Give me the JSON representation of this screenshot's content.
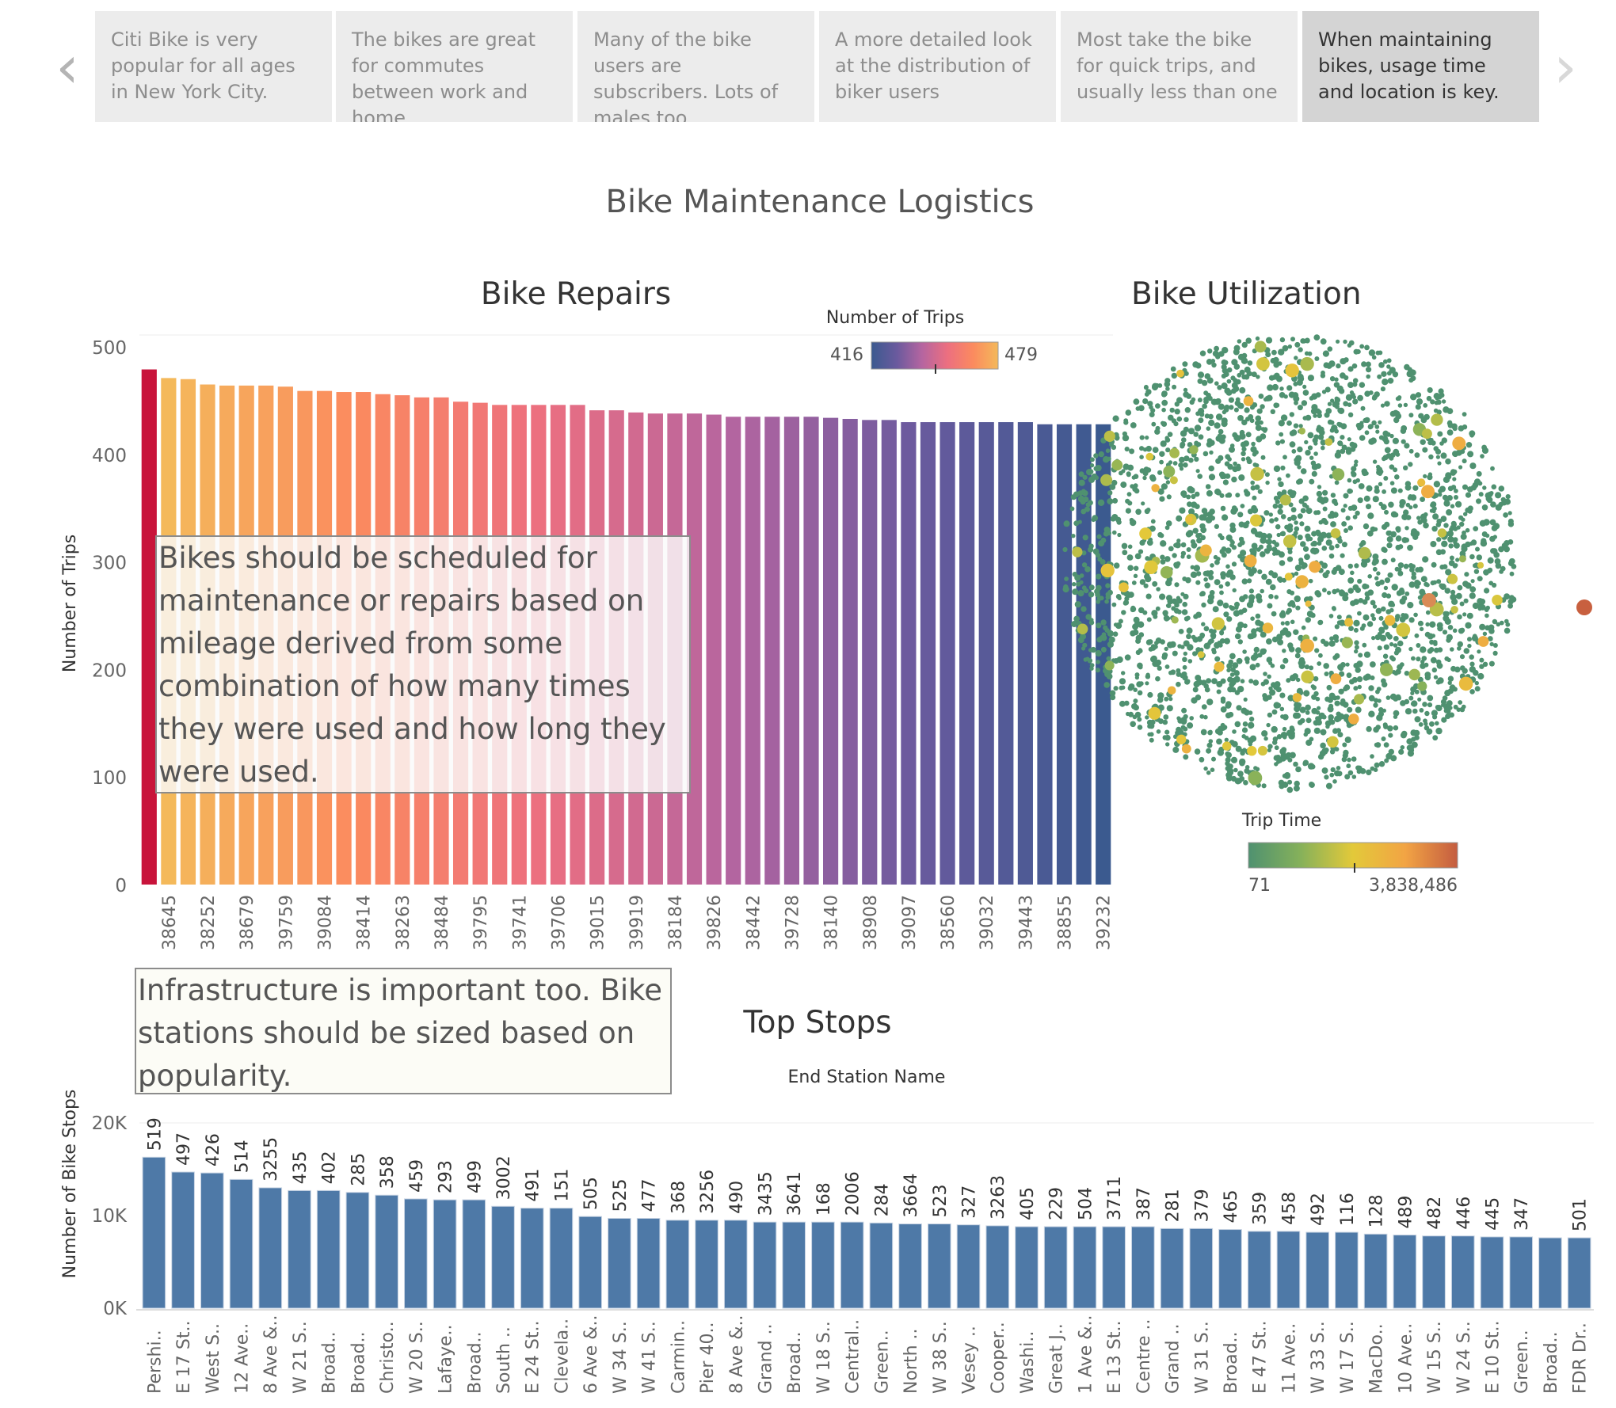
{
  "story": {
    "points": [
      "Citi Bike is very popular for all ages in New York City.",
      "The bikes are great for commutes between work and home.",
      "Many of the bike users are subscribers. Lots of males too.",
      "A more detailed look at the distribution of biker users",
      "Most take the bike for quick trips, and usually less than one",
      "When maintaining bikes, usage time and location is key."
    ],
    "active_index": 5,
    "prev_glyph": "‹",
    "next_glyph": "›"
  },
  "title": "Bike Maintenance Logistics",
  "annotations": {
    "repairs": "Bikes should be scheduled for maintenance or repairs based on mileage derived from some combination of how many times they were used and how long they were used.",
    "infrastructure": "Infrastructure is important too. Bike stations should be sized based on popularity."
  },
  "colors": {
    "bar_blue": "#4e79a7",
    "bubble_base": "#4f9170",
    "repairs_gradient": [
      "#3b5a8f",
      "#6a5a9e",
      "#b565a0",
      "#ec6f80",
      "#fb8a5f",
      "#f4b95a",
      "#c8143b"
    ],
    "trip_time_gradient": [
      "#4f9170",
      "#86b15a",
      "#e3c93a",
      "#f2a444",
      "#c45c40"
    ]
  },
  "chart_data": [
    {
      "id": "bike-repairs",
      "type": "bar",
      "title": "Bike Repairs",
      "xlabel": "",
      "ylabel": "Number of Trips",
      "ylim": [
        0,
        500
      ],
      "yticks": [
        "500",
        "400",
        "300",
        "200",
        "100",
        "0"
      ],
      "legend": {
        "title": "Number of Trips",
        "min_label": "416",
        "max_label": "479",
        "min": 416,
        "max": 479
      },
      "x_tick_labels": [
        "38645",
        "38252",
        "38679",
        "39759",
        "39084",
        "38414",
        "38263",
        "38484",
        "39795",
        "39741",
        "39706",
        "39015",
        "39919",
        "38184",
        "39826",
        "38442",
        "39728",
        "38140",
        "38908",
        "39097",
        "38560",
        "39032",
        "39443",
        "38855",
        "39232"
      ],
      "values": [
        479,
        471,
        470,
        465,
        464,
        464,
        464,
        463,
        459,
        459,
        458,
        458,
        456,
        455,
        453,
        453,
        449,
        448,
        446,
        446,
        446,
        446,
        446,
        441,
        441,
        439,
        438,
        438,
        438,
        437,
        435,
        435,
        435,
        435,
        435,
        434,
        433,
        432,
        432,
        430,
        430,
        430,
        430,
        430,
        430,
        430,
        428,
        428,
        428,
        428
      ]
    },
    {
      "id": "bike-utilization",
      "type": "scatter",
      "title": "Bike Utilization",
      "legend": {
        "title": "Trip Time",
        "min_label": "71",
        "max_label": "3,838,486",
        "min": 71,
        "max": 3838486
      }
    },
    {
      "id": "top-stops",
      "type": "bar",
      "title": "Top Stops",
      "subtitle": "End Station Name",
      "xlabel": "",
      "ylabel": "Number of Bike Stops",
      "ylim": [
        0,
        20000
      ],
      "yticks": [
        "20K",
        "10K",
        "0K"
      ],
      "categories": [
        "Pershi..",
        "E 17 St..",
        "West S..",
        "12 Ave..",
        "8 Ave &..",
        "W 21 S..",
        "Broad..",
        "Broad..",
        "Christo..",
        "W 20 S..",
        "Lafaye..",
        "Broad..",
        "South ..",
        "E 24 St..",
        "Clevela..",
        "6 Ave &..",
        "W 34 S..",
        "W 41 S..",
        "Carmin..",
        "Pier 40..",
        "8 Ave &..",
        "Grand ..",
        "Broad..",
        "W 18 S..",
        "Central..",
        "Green..",
        "North ..",
        "W 38 S..",
        "Vesey ..",
        "Cooper..",
        "Washi..",
        "Great J..",
        "1 Ave &..",
        "E 13 St..",
        "Centre ..",
        "Grand ..",
        "W 31 S..",
        "Broad..",
        "E 47 St..",
        "11 Ave..",
        "W 33 S..",
        "W 17 S..",
        "MacDo..",
        "10 Ave..",
        "W 15 S..",
        "W 24 S..",
        "E 10 St..",
        "Green..",
        "Broad..",
        "FDR Dr.."
      ],
      "labels": [
        "519",
        "497",
        "426",
        "514",
        "3255",
        "435",
        "402",
        "285",
        "358",
        "459",
        "293",
        "499",
        "3002",
        "491",
        "151",
        "505",
        "525",
        "477",
        "368",
        "3256",
        "490",
        "3435",
        "3641",
        "168",
        "2006",
        "284",
        "3664",
        "523",
        "327",
        "3263",
        "405",
        "229",
        "504",
        "3711",
        "387",
        "281",
        "379",
        "465",
        "359",
        "458",
        "492",
        "116",
        "128",
        "489",
        "482",
        "446",
        "445",
        "347",
        "",
        "501"
      ],
      "values": [
        16300,
        14700,
        14600,
        13900,
        13000,
        12700,
        12700,
        12500,
        12200,
        11800,
        11700,
        11700,
        11000,
        10800,
        10800,
        9900,
        9700,
        9700,
        9500,
        9500,
        9500,
        9300,
        9300,
        9300,
        9300,
        9200,
        9100,
        9100,
        9000,
        8900,
        8800,
        8800,
        8800,
        8800,
        8800,
        8600,
        8600,
        8500,
        8300,
        8300,
        8200,
        8200,
        8000,
        7900,
        7800,
        7800,
        7700,
        7700,
        7600,
        7600
      ]
    }
  ]
}
